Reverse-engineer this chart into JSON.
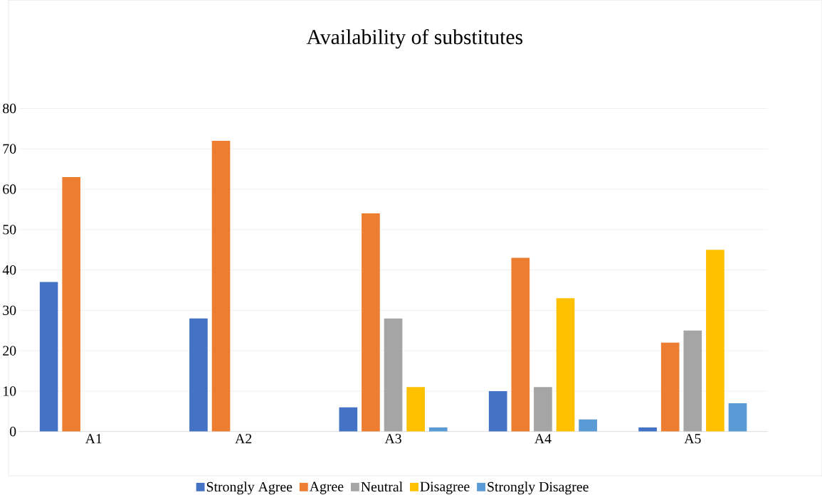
{
  "chart_data": {
    "type": "bar",
    "title": "Availability of substitutes",
    "categories": [
      "A1",
      "A2",
      "A3",
      "A4",
      "A5"
    ],
    "series": [
      {
        "name": "Strongly Agree",
        "color": "#4472c4",
        "values": [
          37,
          28,
          6,
          10,
          1
        ]
      },
      {
        "name": "Agree",
        "color": "#ed7d31",
        "values": [
          63,
          72,
          54,
          43,
          22
        ]
      },
      {
        "name": "Neutral",
        "color": "#a5a5a5",
        "values": [
          0,
          0,
          28,
          11,
          25
        ]
      },
      {
        "name": "Disagree",
        "color": "#ffc000",
        "values": [
          0,
          0,
          11,
          33,
          45
        ]
      },
      {
        "name": "Strongly Disagree",
        "color": "#5b9bd5",
        "values": [
          0,
          0,
          1,
          3,
          7
        ]
      }
    ],
    "ylim": [
      0,
      80
    ],
    "yticks": [
      0,
      10,
      20,
      30,
      40,
      50,
      60,
      70,
      80
    ],
    "grid": "y",
    "legend": "bottom"
  }
}
